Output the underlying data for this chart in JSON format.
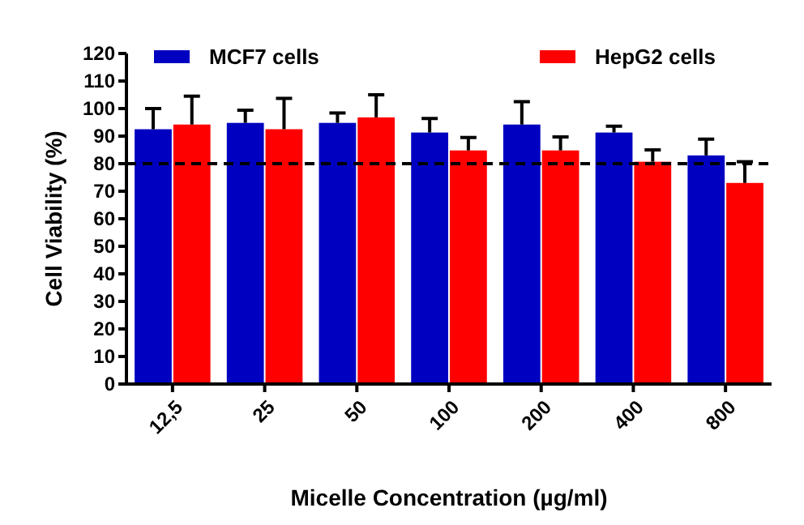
{
  "chart_data": {
    "type": "bar",
    "xlabel": "Micelle Concentration (µg/ml)",
    "ylabel": "Cell Viability (%)",
    "categories": [
      "12,5",
      "25",
      "50",
      "100",
      "200",
      "400",
      "800"
    ],
    "series": [
      {
        "name": "MCF7 cells",
        "color": "#0000c0",
        "values": [
          92.5,
          94.8,
          94.8,
          91.3,
          94.2,
          91.3,
          83
        ],
        "errors": [
          [
            92.5,
            100
          ],
          [
            94.8,
            99.4
          ],
          [
            94.8,
            98.4
          ],
          [
            91.3,
            96.4
          ],
          [
            94.2,
            102.5
          ],
          [
            91.3,
            93.6
          ],
          [
            83,
            88.9
          ]
        ]
      },
      {
        "name": "HepG2 cells",
        "color": "#ff0000",
        "values": [
          94.2,
          92.5,
          96.8,
          84.8,
          84.8,
          80.7,
          73
        ],
        "errors": [
          [
            94.2,
            104.5
          ],
          [
            92.5,
            103.7
          ],
          [
            96.8,
            105
          ],
          [
            84.8,
            89.5
          ],
          [
            84.8,
            89.7
          ],
          [
            80.7,
            85
          ],
          [
            73,
            80.7
          ]
        ]
      }
    ],
    "ylim": [
      0,
      120
    ],
    "yticks": [
      0,
      10,
      20,
      30,
      40,
      50,
      60,
      70,
      80,
      90,
      100,
      110,
      120
    ],
    "ref_lines": [
      {
        "axis": "y",
        "value": 80,
        "line_style": "dashed",
        "color": "#000000"
      }
    ],
    "legend": "top",
    "grid": false
  }
}
